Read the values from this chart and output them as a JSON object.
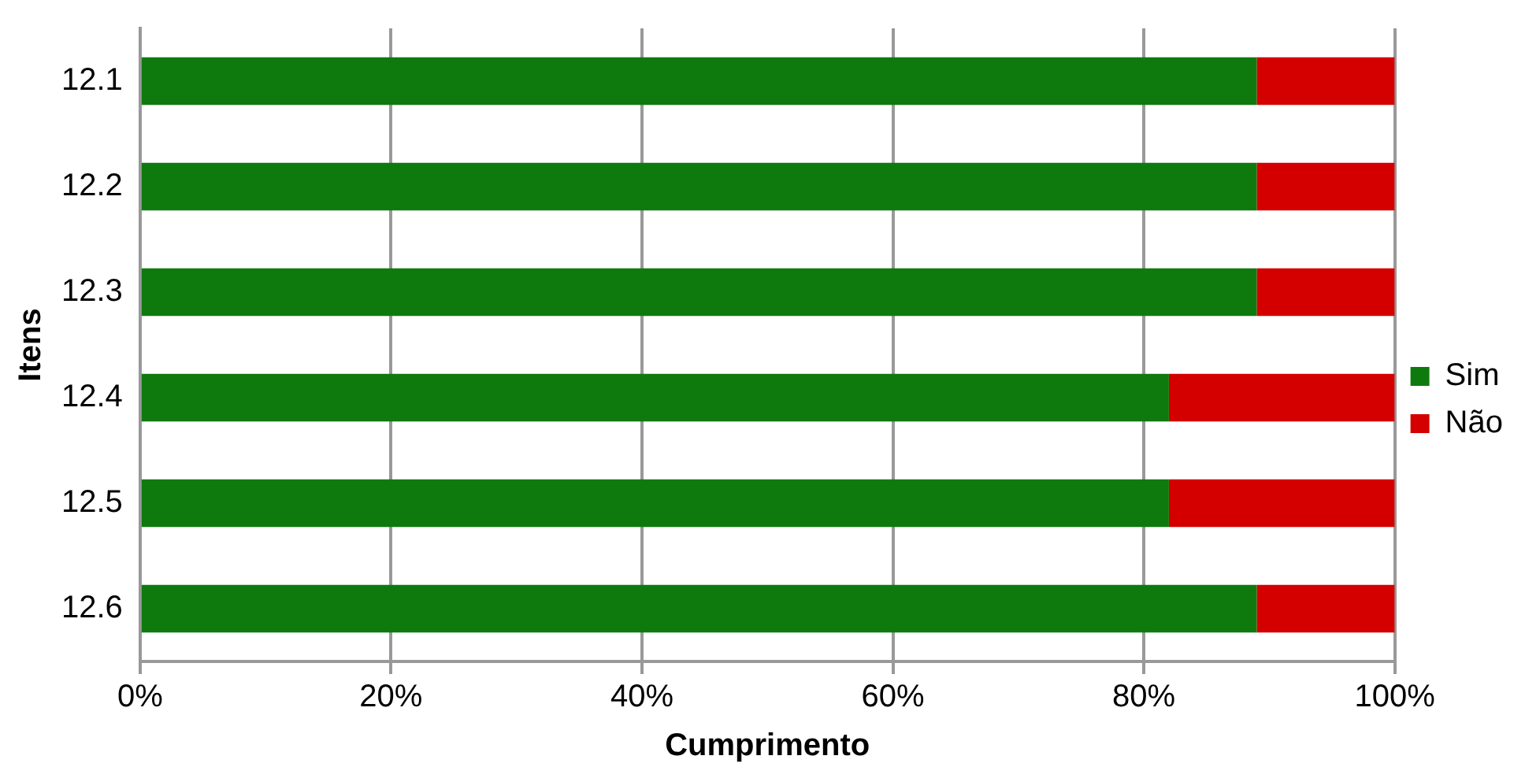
{
  "chart_data": {
    "type": "bar",
    "orientation": "horizontal",
    "stacked": true,
    "xlabel": "Cumprimento",
    "ylabel": "Itens",
    "categories": [
      "12.1",
      "12.2",
      "12.3",
      "12.4",
      "12.5",
      "12.6"
    ],
    "series": [
      {
        "name": "Sim",
        "color": "#0e7a0e",
        "values": [
          89,
          89,
          89,
          82,
          82,
          89
        ]
      },
      {
        "name": "Não",
        "color": "#d40000",
        "values": [
          11,
          11,
          11,
          18,
          18,
          11
        ]
      }
    ],
    "xlim": [
      0,
      100
    ],
    "xticks": [
      {
        "value": 0,
        "label": "0%"
      },
      {
        "value": 20,
        "label": "20%"
      },
      {
        "value": 40,
        "label": "40%"
      },
      {
        "value": 60,
        "label": "60%"
      },
      {
        "value": 80,
        "label": "80%"
      },
      {
        "value": 100,
        "label": "100%"
      }
    ],
    "grid": "x",
    "legend": "right"
  }
}
